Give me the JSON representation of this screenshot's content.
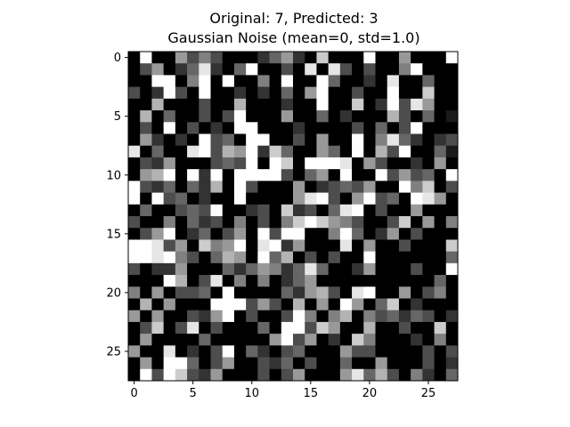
{
  "chart_data": {
    "type": "heatmap",
    "title_lines": [
      "Original: 7, Predicted: 3",
      "Gaussian Noise (mean=0, std=1.0)"
    ],
    "colormap": "gray",
    "grid": false,
    "rows": 28,
    "cols": 28,
    "xlim": [
      -0.5,
      27.5
    ],
    "ylim": [
      27.5,
      -0.5
    ],
    "x_ticks": [
      0,
      5,
      10,
      15,
      20,
      25
    ],
    "y_ticks": [
      0,
      5,
      10,
      15,
      20,
      25
    ],
    "vmin": 0,
    "vmax": 1,
    "pixels": [
      [
        0,
        1,
        0,
        0,
        0.6,
        0.3,
        0.5,
        0.3,
        0,
        0,
        0,
        0.2,
        0.4,
        0.6,
        0.2,
        0,
        0.8,
        0,
        0,
        0,
        1,
        0,
        0,
        0.6,
        0,
        0,
        0,
        1
      ],
      [
        0,
        0.3,
        0.6,
        0,
        0.2,
        0.4,
        0.9,
        0.2,
        0,
        0.4,
        1,
        0,
        0,
        0.3,
        0,
        0.9,
        0,
        0.9,
        0.3,
        0,
        0.3,
        0,
        0,
        0.5,
        1,
        0,
        0,
        0
      ],
      [
        0,
        0,
        1,
        1,
        0,
        0.5,
        1,
        0,
        1,
        0,
        0,
        0.5,
        0,
        1,
        0,
        0,
        1,
        0.4,
        0,
        0,
        0.2,
        0,
        0.9,
        0,
        0,
        0.4,
        0,
        0
      ],
      [
        0.3,
        0,
        0.2,
        1,
        0.3,
        0,
        1,
        0,
        0,
        0.2,
        0,
        0.2,
        0,
        0.4,
        0,
        0.6,
        1,
        0,
        0,
        0.3,
        0,
        0,
        1,
        0,
        0,
        0.8,
        0,
        0
      ],
      [
        0,
        0,
        0.7,
        0,
        0,
        0,
        0.3,
        0,
        0,
        0.7,
        0,
        0,
        0,
        0.2,
        0,
        0,
        1,
        0,
        0,
        0.8,
        0,
        0.2,
        1,
        0.3,
        0.9,
        0.6,
        0,
        0
      ],
      [
        0,
        0.7,
        0,
        0.4,
        0,
        0,
        0.3,
        0,
        0.3,
        1,
        0,
        0,
        0,
        0.6,
        0,
        0,
        0.4,
        0,
        0.2,
        0,
        0,
        0,
        0.7,
        0.3,
        0,
        0.4,
        0,
        0.1
      ],
      [
        0,
        0.3,
        0,
        1,
        0,
        0.3,
        0,
        0.2,
        0,
        1,
        1,
        0,
        0,
        0,
        0.2,
        0,
        0,
        0,
        0,
        0.3,
        0,
        0.4,
        0,
        0.3,
        1,
        0,
        0,
        0
      ],
      [
        0,
        0.6,
        0.2,
        0,
        0.2,
        0,
        1,
        0.3,
        0.4,
        0,
        1,
        1,
        0,
        0,
        0.3,
        0,
        0.6,
        0,
        0,
        1,
        0,
        0.5,
        0.9,
        0.4,
        0.2,
        0,
        0.2,
        0.3
      ],
      [
        0.9,
        0,
        0.4,
        0,
        0,
        0.9,
        1,
        0.3,
        0.7,
        0.6,
        1,
        0.2,
        0.8,
        0.4,
        0,
        0,
        0.6,
        0.4,
        0,
        1,
        0,
        0.7,
        0.3,
        1,
        0,
        0,
        0.4,
        0.1
      ],
      [
        0,
        0.3,
        0.2,
        0.6,
        0,
        0,
        0,
        0.3,
        0.4,
        0.3,
        1,
        0,
        1,
        0.8,
        0,
        1,
        1,
        1,
        0.9,
        0,
        0.6,
        0.3,
        0,
        0,
        0.2,
        0,
        0.6,
        0
      ],
      [
        0,
        0.6,
        0.7,
        1,
        0,
        1,
        0.2,
        1,
        0,
        1,
        1,
        1,
        1,
        0.3,
        0,
        0.4,
        0.6,
        0,
        1,
        0,
        0,
        1,
        0.3,
        0.6,
        0.3,
        0.4,
        0,
        1
      ],
      [
        1,
        0.3,
        0.2,
        0.4,
        0,
        0.4,
        0.2,
        0.7,
        0,
        1,
        0.3,
        0,
        0,
        0,
        0.6,
        0,
        0.2,
        0.3,
        0.4,
        0.3,
        0.6,
        0,
        0,
        1,
        0.5,
        0.8,
        0,
        0.3
      ],
      [
        1,
        0,
        1,
        0.3,
        0.4,
        0,
        0.2,
        0,
        0,
        1,
        0,
        0,
        0,
        0,
        0.6,
        0.9,
        1,
        0.3,
        0,
        0.6,
        1,
        0.3,
        0.4,
        0,
        1,
        0.9,
        0.6,
        0
      ],
      [
        0,
        0.4,
        0,
        0,
        0.3,
        0.4,
        0.3,
        1,
        0,
        0,
        0.2,
        0.3,
        0,
        0.8,
        0.2,
        0.3,
        0,
        0.4,
        0.9,
        1,
        0,
        0.3,
        0,
        0,
        0.6,
        0,
        0,
        0
      ],
      [
        0.3,
        0,
        0,
        0.5,
        0,
        0.4,
        0.2,
        0.3,
        0,
        0.5,
        0,
        0.3,
        0,
        0.5,
        0.8,
        1,
        0.8,
        0.6,
        0.5,
        0.3,
        0,
        0,
        0.3,
        0.8,
        0,
        0.6,
        0,
        0.5
      ],
      [
        0,
        0.3,
        0.6,
        1,
        0,
        0.2,
        0.4,
        0,
        0.3,
        0.6,
        0,
        1,
        0.3,
        1,
        1,
        0,
        0,
        0.5,
        1,
        0.4,
        0,
        0.2,
        0.6,
        0,
        0.3,
        0,
        0,
        0
      ],
      [
        1,
        1,
        0.9,
        0.3,
        0.6,
        0,
        0.8,
        0.5,
        0.6,
        1,
        0,
        0.9,
        1,
        0.2,
        0.6,
        0,
        0,
        0,
        0.9,
        0,
        0.6,
        0,
        0,
        0.3,
        0,
        0,
        0,
        0.8
      ],
      [
        1,
        1,
        0.9,
        1,
        0.5,
        0.3,
        0,
        0.4,
        0.7,
        0.6,
        0,
        1,
        0.4,
        0.7,
        0,
        0.3,
        0,
        0.3,
        0,
        0,
        1,
        0,
        0,
        0,
        0,
        0,
        0,
        0.4
      ],
      [
        0.3,
        0,
        0.2,
        0.2,
        0.6,
        0,
        0,
        0,
        0.4,
        0.2,
        0.4,
        0.6,
        0.5,
        0.2,
        0.4,
        0.9,
        0.4,
        0,
        0,
        0.2,
        0.6,
        0,
        0,
        0,
        0.3,
        0,
        0,
        1
      ],
      [
        0,
        0,
        0,
        1,
        0.7,
        0,
        0.3,
        0.9,
        0,
        0.5,
        0,
        0.5,
        0,
        0.2,
        0.4,
        0.6,
        0,
        0,
        0,
        0,
        0,
        0,
        0,
        0,
        0,
        0,
        0.4,
        0
      ],
      [
        0.5,
        0,
        0.6,
        0,
        0.3,
        0.3,
        0.4,
        0,
        1,
        0,
        0,
        0,
        0,
        0.4,
        0.2,
        0.6,
        0.7,
        0.3,
        0,
        0.9,
        1,
        0,
        0,
        0.6,
        0,
        0.3,
        0.5,
        0
      ],
      [
        0,
        0.7,
        0,
        0.6,
        0,
        0,
        0,
        1,
        1,
        1,
        0.3,
        0.6,
        0.3,
        0,
        0.7,
        0,
        0.6,
        0,
        1,
        0.6,
        0,
        0.4,
        0.8,
        0,
        0.2,
        0,
        0,
        0
      ],
      [
        0.6,
        0,
        0.6,
        0,
        0,
        0.3,
        0.2,
        0.6,
        1,
        0,
        0.3,
        0,
        0,
        0.3,
        1,
        0.5,
        0,
        0.5,
        0.7,
        0,
        0.5,
        0.3,
        0.4,
        0.2,
        0.4,
        0.3,
        0,
        0.2
      ],
      [
        0,
        0.3,
        0.8,
        0,
        0.3,
        0.9,
        0,
        0.3,
        0,
        0,
        0,
        0.4,
        0,
        1,
        1,
        0.3,
        0.8,
        0.6,
        0,
        0,
        0.7,
        0,
        0,
        0.3,
        0,
        0,
        0.8,
        0
      ],
      [
        0,
        0.6,
        0,
        0,
        0,
        0,
        0.4,
        0,
        0,
        0,
        0,
        0,
        0.6,
        1,
        0.3,
        0.6,
        0,
        0.2,
        0,
        0.8,
        0.5,
        0,
        0,
        0,
        0.2,
        0,
        0.5,
        0
      ],
      [
        0.6,
        0,
        0,
        0.9,
        0,
        0.2,
        0,
        0.3,
        1,
        0,
        0.4,
        0.2,
        0,
        0.3,
        0.4,
        0,
        0,
        0,
        0.6,
        0.3,
        0.3,
        0,
        0,
        0,
        0,
        0.3,
        0,
        0.3
      ],
      [
        0,
        0.6,
        0,
        1,
        1,
        0.4,
        0,
        0.3,
        0.6,
        0,
        0,
        0.3,
        0.2,
        0.4,
        0,
        0.3,
        0,
        0,
        0.4,
        0,
        0,
        0.6,
        0,
        0,
        0,
        0.3,
        0,
        0.2
      ],
      [
        0,
        1,
        0.3,
        1,
        0.8,
        0.3,
        0.2,
        0.6,
        0,
        0,
        0,
        0.3,
        0,
        0.3,
        0.6,
        0,
        0,
        0,
        0.6,
        0.9,
        0.4,
        0.7,
        0.3,
        0,
        0.5,
        0.2,
        0,
        0.4
      ]
    ]
  }
}
